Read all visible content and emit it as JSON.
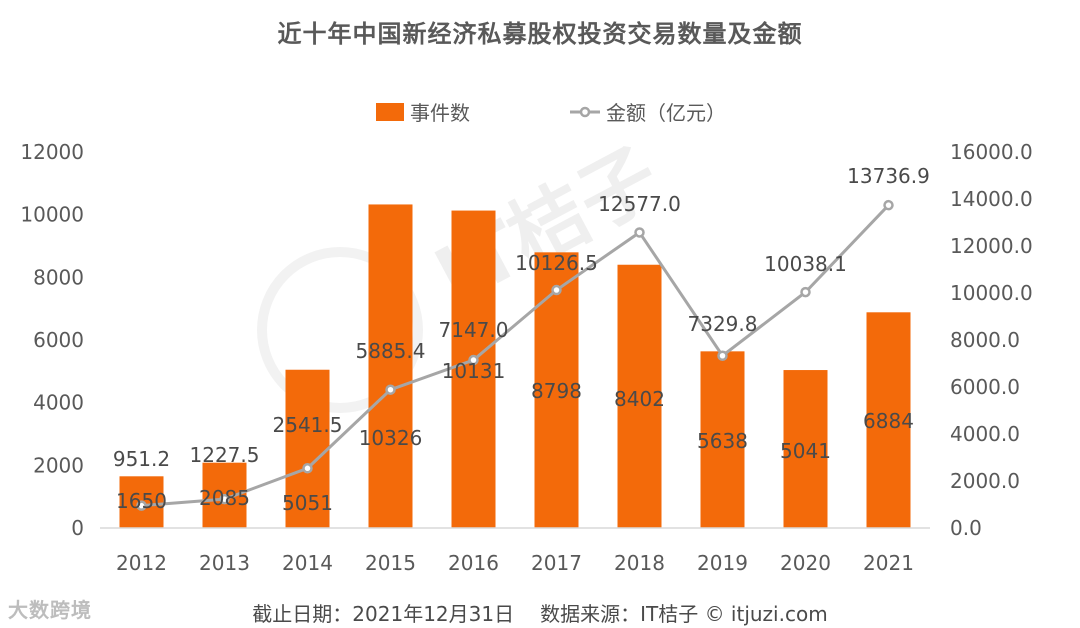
{
  "footer": {
    "date_label": "截止日期：2021年12月31日",
    "source_label": "数据来源：IT桔子 © itjuzi.com"
  },
  "corner_logo": "大数跨境",
  "watermark": "IT桔子",
  "colors": {
    "bar": "#f36a0a",
    "line": "#a6a6a6",
    "text": "#595959",
    "axis": "#d9d9d9"
  },
  "chart_data": {
    "type": "bar",
    "title": "近十年中国新经济私募股权投资交易数量及金额",
    "categories": [
      "2012",
      "2013",
      "2014",
      "2015",
      "2016",
      "2017",
      "2018",
      "2019",
      "2020",
      "2021"
    ],
    "left_axis": {
      "min": 0,
      "max": 12000,
      "step": 2000,
      "ticks": [
        "0",
        "2000",
        "4000",
        "6000",
        "8000",
        "10000",
        "12000"
      ]
    },
    "right_axis": {
      "min": 0,
      "max": 16000,
      "step": 2000,
      "ticks": [
        "0.0",
        "2000.0",
        "4000.0",
        "6000.0",
        "8000.0",
        "10000.0",
        "12000.0",
        "14000.0",
        "16000.0"
      ]
    },
    "legend_position": "top-center",
    "grid": false,
    "series": [
      {
        "name": "事件数",
        "type": "bar",
        "axis": "left",
        "values": [
          1650,
          2085,
          5051,
          10326,
          10131,
          8798,
          8402,
          5638,
          5041,
          6884
        ],
        "labels": [
          "1650",
          "2085",
          "5051",
          "10326",
          "10131",
          "8798",
          "8402",
          "5638",
          "5041",
          "6884"
        ]
      },
      {
        "name": "金额（亿元）",
        "type": "line",
        "axis": "right",
        "values": [
          951.2,
          1227.5,
          2541.5,
          5885.4,
          7147.0,
          10126.5,
          12577.0,
          7329.8,
          10038.1,
          13736.9
        ],
        "labels": [
          "951.2",
          "1227.5",
          "2541.5",
          "5885.4",
          "7147.0",
          "10126.5",
          "12577.0",
          "7329.8",
          "10038.1",
          "13736.9"
        ]
      }
    ]
  }
}
